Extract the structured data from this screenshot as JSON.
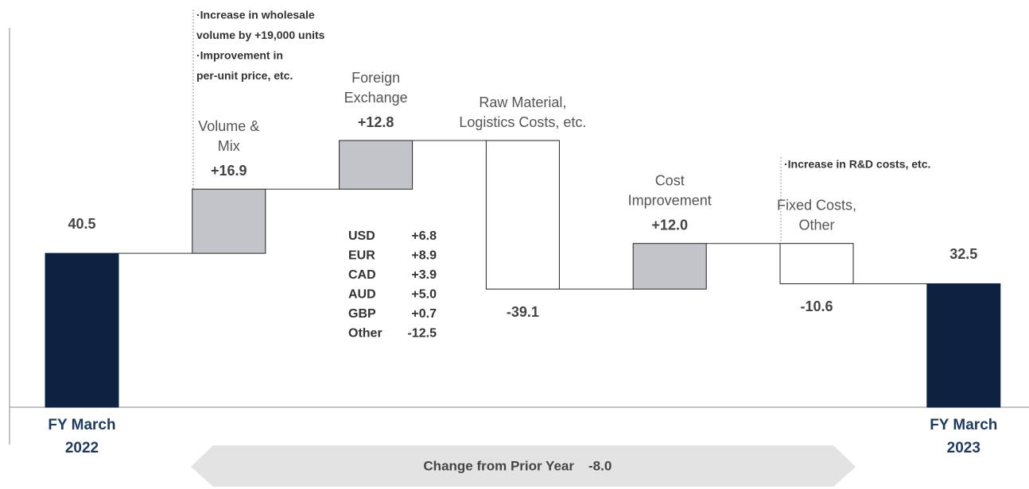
{
  "chart_data": {
    "type": "waterfall",
    "categories": [
      [
        "FY March",
        "2022"
      ],
      [
        "Volume &",
        "Mix"
      ],
      [
        "Foreign",
        "Exchange"
      ],
      [
        "Raw Material,",
        "Logistics Costs, etc."
      ],
      [
        "Cost",
        "Improvement"
      ],
      [
        "Fixed Costs,",
        "Other"
      ],
      [
        "FY March",
        "2023"
      ]
    ],
    "values": [
      40.5,
      16.9,
      12.8,
      -39.1,
      12.0,
      -10.6,
      32.5
    ],
    "value_labels": [
      "40.5",
      "+16.9",
      "+12.8",
      "-39.1",
      "+12.0",
      "-10.6",
      "32.5"
    ],
    "colors": {
      "total": "#0d2240",
      "increase": "#c3c4ca",
      "decrease": "#ffffff"
    },
    "notes": {
      "volume": [
        "·Increase in wholesale",
        "volume by +19,000 units",
        "·Improvement in",
        "per-unit price, etc."
      ],
      "fixed": [
        "·Increase in R&D costs, etc."
      ]
    },
    "fx_breakdown": [
      [
        "USD",
        "+6.8"
      ],
      [
        "EUR",
        "+8.9"
      ],
      [
        "CAD",
        "+3.9"
      ],
      [
        "AUD",
        "+5.0"
      ],
      [
        "GBP",
        "+0.7"
      ],
      [
        "Other",
        "-12.5"
      ]
    ],
    "change": {
      "label": "Change from Prior Year",
      "value_label": "-8.0"
    }
  }
}
